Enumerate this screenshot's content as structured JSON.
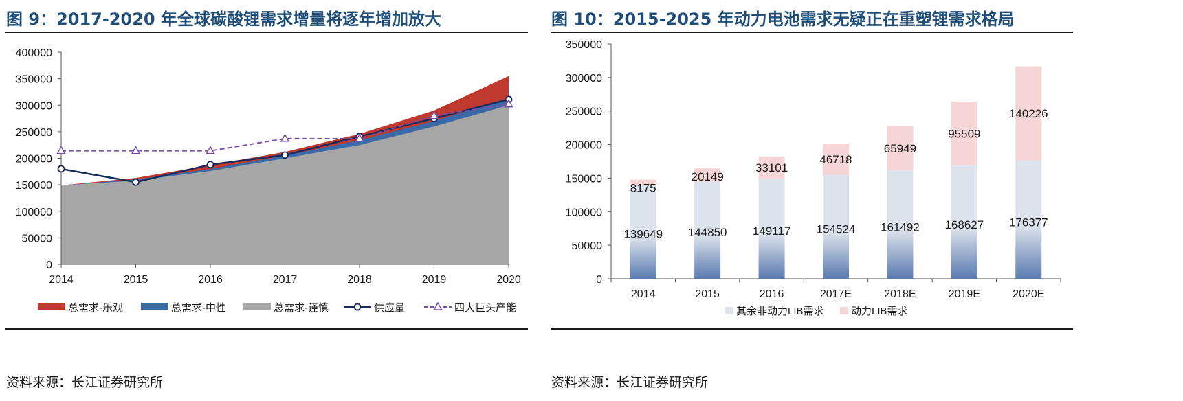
{
  "left": {
    "title": "图 9：2017-2020 年全球碳酸锂需求增量将逐年增加放大",
    "source": "资料来源：长江证券研究所"
  },
  "right": {
    "title": "图 10：2015-2025 年动力电池需求无疑正在重塑锂需求格局",
    "source": "资料来源：长江证券研究所"
  },
  "chart_data": [
    {
      "type": "area",
      "title": "图 9：2017-2020 年全球碳酸锂需求增量将逐年增加放大",
      "x": [
        "2014",
        "2015",
        "2016",
        "2017",
        "2018",
        "2019",
        "2020"
      ],
      "ylim": [
        0,
        400000
      ],
      "yticks": [
        0,
        50000,
        100000,
        150000,
        200000,
        250000,
        300000,
        350000,
        400000
      ],
      "grid": false,
      "legend_position": "bottom",
      "series": [
        {
          "name": "总需求-乐观",
          "kind": "area",
          "color": "#c0392f",
          "values": [
            149000,
            163000,
            187000,
            212000,
            246000,
            290000,
            355000
          ]
        },
        {
          "name": "总需求-中性",
          "kind": "area",
          "color": "#3a6aa8",
          "values": [
            149000,
            160000,
            180000,
            205000,
            234000,
            270000,
            313000
          ]
        },
        {
          "name": "总需求-谨慎",
          "kind": "area",
          "color": "#a6a6a6",
          "values": [
            149000,
            158000,
            176000,
            200000,
            225000,
            260000,
            300000
          ]
        },
        {
          "name": "供应量",
          "kind": "line",
          "color": "#1b2a5c",
          "marker": "circle",
          "values": [
            180000,
            155000,
            188000,
            206000,
            241000,
            275000,
            311000
          ]
        },
        {
          "name": "四大巨头产能",
          "kind": "line",
          "color": "#7a4fa8",
          "dashed": true,
          "marker": "triangle",
          "values": [
            214000,
            214000,
            214000,
            237000,
            237000,
            280000,
            302000
          ]
        }
      ]
    },
    {
      "type": "bar",
      "stacked": true,
      "title": "图 10：2015-2025 年动力电池需求无疑正在重塑锂需求格局",
      "categories": [
        "2014",
        "2015",
        "2016",
        "2017E",
        "2018E",
        "2019E",
        "2020E"
      ],
      "ylim": [
        0,
        350000
      ],
      "yticks": [
        0,
        50000,
        100000,
        150000,
        200000,
        250000,
        300000,
        350000
      ],
      "grid": false,
      "legend_position": "bottom",
      "series": [
        {
          "name": "其余非动力LIB需求",
          "color": "#dde3ec",
          "values": [
            139649,
            144850,
            149117,
            154524,
            161492,
            168627,
            176377
          ]
        },
        {
          "name": "动力LIB需求",
          "color": "#f6d5d7",
          "values": [
            8175,
            20149,
            33101,
            46718,
            65949,
            95509,
            140226
          ]
        }
      ]
    }
  ]
}
